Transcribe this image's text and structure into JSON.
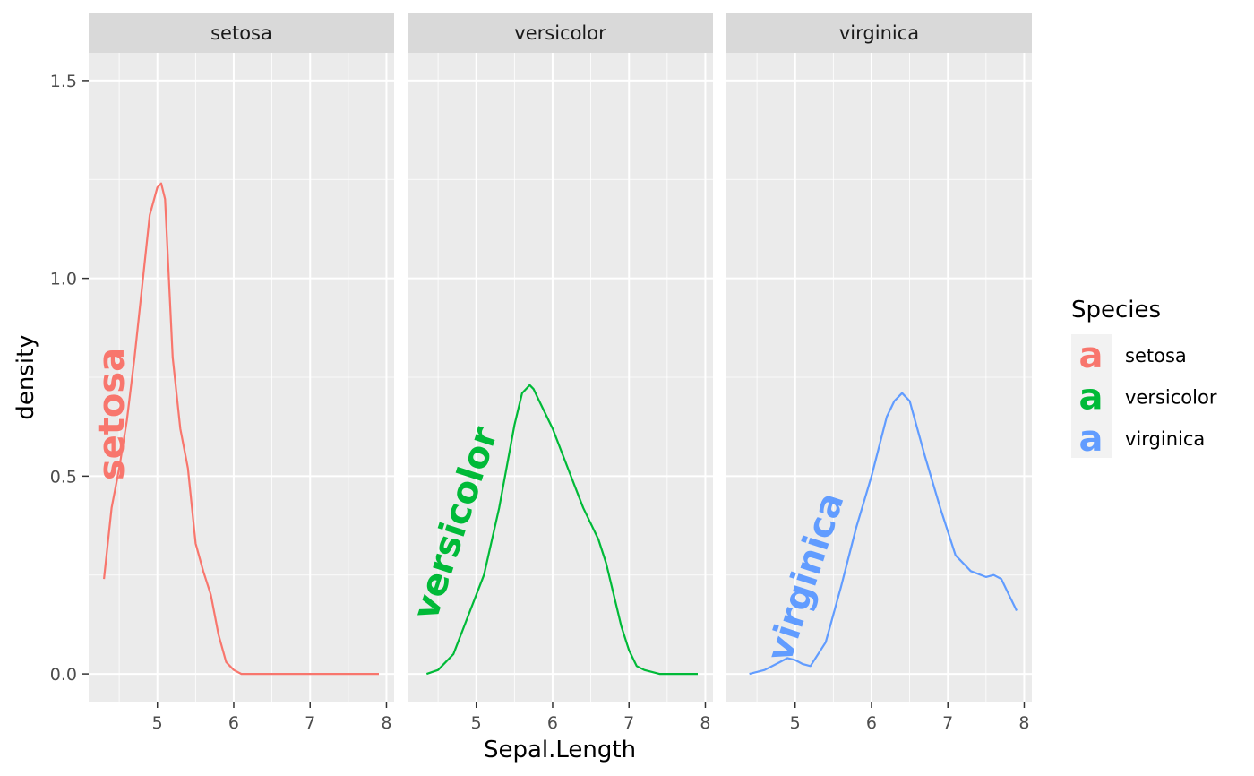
{
  "chart_data": {
    "type": "line",
    "facet_by": "Species",
    "xlabel": "Sepal.Length",
    "ylabel": "density",
    "xlim": [
      4.1,
      8.1
    ],
    "ylim": [
      -0.07,
      1.57
    ],
    "x_ticks": [
      5,
      6,
      7,
      8
    ],
    "x_tick_labels": [
      "5",
      "6",
      "7",
      "8"
    ],
    "y_ticks": [
      0.0,
      0.5,
      1.0,
      1.5
    ],
    "y_tick_labels": [
      "0.0",
      "0.5",
      "1.0",
      "1.5"
    ],
    "grid": true,
    "legend": {
      "title": "Species",
      "position": "right",
      "key_glyph": "a",
      "entries": [
        "setosa",
        "versicolor",
        "virginica"
      ]
    },
    "panels": [
      {
        "strip": "setosa",
        "color": "#F8766D",
        "curve_label": "setosa",
        "x": [
          4.3,
          4.4,
          4.5,
          4.6,
          4.7,
          4.8,
          4.9,
          5.0,
          5.05,
          5.1,
          5.2,
          5.3,
          5.4,
          5.5,
          5.6,
          5.7,
          5.8,
          5.9,
          6.0,
          6.1,
          6.2,
          6.5,
          7.0,
          7.5,
          7.9
        ],
        "y": [
          0.24,
          0.42,
          0.52,
          0.64,
          0.8,
          0.98,
          1.16,
          1.23,
          1.24,
          1.2,
          0.8,
          0.62,
          0.52,
          0.33,
          0.26,
          0.2,
          0.1,
          0.03,
          0.01,
          0.0,
          0.0,
          0.0,
          0.0,
          0.0,
          0.0
        ]
      },
      {
        "strip": "versicolor",
        "color": "#00BA38",
        "curve_label": "versicolor",
        "x": [
          4.35,
          4.5,
          4.7,
          4.9,
          5.1,
          5.3,
          5.5,
          5.6,
          5.7,
          5.75,
          5.8,
          6.0,
          6.2,
          6.4,
          6.5,
          6.6,
          6.7,
          6.8,
          6.9,
          7.0,
          7.1,
          7.2,
          7.4,
          7.6,
          7.9
        ],
        "y": [
          0.0,
          0.01,
          0.05,
          0.15,
          0.25,
          0.42,
          0.63,
          0.71,
          0.73,
          0.72,
          0.7,
          0.62,
          0.52,
          0.42,
          0.38,
          0.34,
          0.28,
          0.2,
          0.12,
          0.06,
          0.02,
          0.01,
          0.0,
          0.0,
          0.0
        ]
      },
      {
        "strip": "virginica",
        "color": "#619CFF",
        "curve_label": "virginica",
        "x": [
          4.4,
          4.6,
          4.8,
          4.9,
          5.0,
          5.1,
          5.2,
          5.4,
          5.6,
          5.8,
          6.0,
          6.2,
          6.3,
          6.4,
          6.5,
          6.7,
          6.9,
          7.1,
          7.3,
          7.5,
          7.6,
          7.7,
          7.8,
          7.9
        ],
        "y": [
          0.0,
          0.01,
          0.03,
          0.04,
          0.035,
          0.025,
          0.02,
          0.08,
          0.22,
          0.37,
          0.5,
          0.65,
          0.69,
          0.71,
          0.69,
          0.55,
          0.42,
          0.3,
          0.26,
          0.245,
          0.25,
          0.24,
          0.2,
          0.16
        ]
      }
    ]
  }
}
